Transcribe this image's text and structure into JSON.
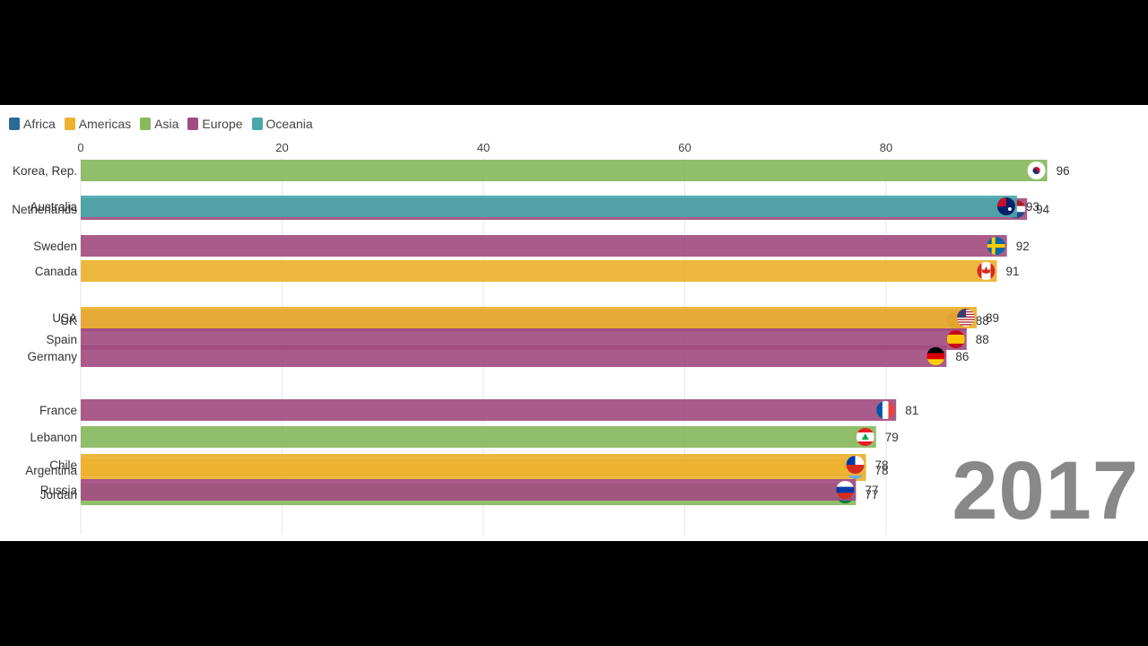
{
  "legend": [
    {
      "name": "Africa",
      "color": "#2a6a97"
    },
    {
      "name": "Americas",
      "color": "#ebb12f"
    },
    {
      "name": "Asia",
      "color": "#88b95d"
    },
    {
      "name": "Europe",
      "color": "#a24d81"
    },
    {
      "name": "Oceania",
      "color": "#4aa7aa"
    }
  ],
  "year": "2017",
  "chart_data": {
    "type": "bar",
    "orientation": "horizontal",
    "xlim": [
      0,
      100
    ],
    "ticks": [
      0,
      20,
      40,
      60,
      80
    ],
    "bars": [
      {
        "label": "Korea, Rep.",
        "value": 96,
        "value_label": "96",
        "region": "Asia",
        "flag": "kr",
        "rank": 1
      },
      {
        "label": "Netherlands",
        "value": 94,
        "value_label": "94",
        "region": "Europe",
        "flag": "nl",
        "rank": 2
      },
      {
        "label": "Australia",
        "value": 93,
        "value_label": "93",
        "region": "Oceania",
        "flag": "au",
        "rank": 2
      },
      {
        "label": "Sweden",
        "value": 92,
        "value_label": "92",
        "region": "Europe",
        "flag": "se",
        "rank": 3
      },
      {
        "label": "Canada",
        "value": 91,
        "value_label": "91",
        "region": "Americas",
        "flag": "ca",
        "rank": 4
      },
      {
        "label": "UK",
        "value": 88,
        "value_label": "88",
        "region": "Europe",
        "flag": "gb",
        "rank": 6
      },
      {
        "label": "USA",
        "value": 89,
        "value_label": "89",
        "region": "Americas",
        "flag": "us",
        "rank": 6
      },
      {
        "label": "Spain",
        "value": 88,
        "value_label": "88",
        "region": "Europe",
        "flag": "es",
        "rank": 7
      },
      {
        "label": "Germany",
        "value": 86,
        "value_label": "86",
        "region": "Europe",
        "flag": "de",
        "rank": 8
      },
      {
        "label": "France",
        "value": 81,
        "value_label": "81",
        "region": "Europe",
        "flag": "fr",
        "rank": 10
      },
      {
        "label": "Lebanon",
        "value": 79,
        "value_label": "79",
        "region": "Asia",
        "flag": "lb",
        "rank": 11
      },
      {
        "label": "Argentina",
        "value": 78,
        "value_label": "78",
        "region": "Americas",
        "flag": "ar",
        "rank": 12
      },
      {
        "label": "Chile",
        "value": 78,
        "value_label": "78",
        "region": "Americas",
        "flag": "cl",
        "rank": 12
      },
      {
        "label": "Jordan",
        "value": 77,
        "value_label": "77",
        "region": "Asia",
        "flag": "jo",
        "rank": 13
      },
      {
        "label": "Russia",
        "value": 77,
        "value_label": "77",
        "region": "Europe",
        "flag": "ru",
        "rank": 13
      }
    ]
  }
}
